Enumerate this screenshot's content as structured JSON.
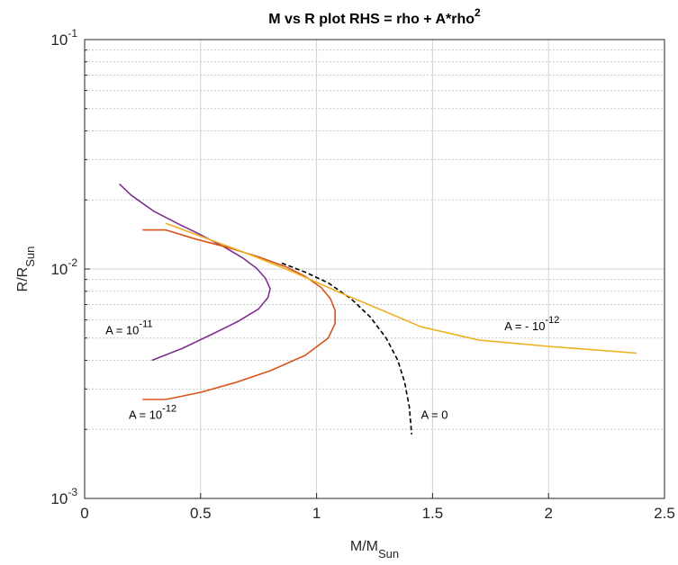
{
  "chart_data": {
    "type": "line",
    "title": "M vs R plot  RHS = rho + A*rho",
    "title_sup": "2",
    "xlabel": "M/M",
    "xlabel_sub": "Sun",
    "ylabel": "R/R",
    "ylabel_sub": "Sun",
    "xlim": [
      0,
      2.5
    ],
    "ylim": [
      0.001,
      0.1
    ],
    "yscale": "log",
    "grid": true,
    "x_ticks": [
      0,
      0.5,
      1,
      1.5,
      2,
      2.5
    ],
    "x_tick_labels": [
      "0",
      "0.5",
      "1",
      "1.5",
      "2",
      "2.5"
    ],
    "y_ticks": [
      {
        "value": 0.001,
        "base": "10",
        "exp": "-3"
      },
      {
        "value": 0.01,
        "base": "10",
        "exp": "-2"
      },
      {
        "value": 0.1,
        "base": "10",
        "exp": "-1"
      }
    ],
    "series": [
      {
        "color": "#7e2f8e",
        "dash": "solid",
        "x": [
          0.15,
          0.2,
          0.3,
          0.4,
          0.5,
          0.6,
          0.68,
          0.74,
          0.78,
          0.8,
          0.79,
          0.75,
          0.66,
          0.55,
          0.42,
          0.29
        ],
        "y": [
          0.0235,
          0.021,
          0.0178,
          0.0158,
          0.0141,
          0.0125,
          0.0112,
          0.0101,
          0.0091,
          0.0082,
          0.0075,
          0.0067,
          0.0059,
          0.0052,
          0.0045,
          0.004
        ]
      },
      {
        "color": "#d95319",
        "dash": "solid",
        "x": [
          0.25,
          0.35,
          0.48,
          0.62,
          0.75,
          0.87,
          0.95,
          1.02,
          1.06,
          1.08,
          1.08,
          1.05,
          0.95,
          0.8,
          0.65,
          0.5,
          0.35,
          0.25
        ],
        "y": [
          0.0148,
          0.0148,
          0.0135,
          0.0124,
          0.0113,
          0.0102,
          0.0093,
          0.0083,
          0.0074,
          0.0066,
          0.0058,
          0.005,
          0.0042,
          0.0036,
          0.0032,
          0.0029,
          0.0027,
          0.0027
        ]
      },
      {
        "color": "#000000",
        "dash": "dashed",
        "x": [
          0.85,
          0.95,
          1.05,
          1.15,
          1.23,
          1.3,
          1.35,
          1.38,
          1.4,
          1.41
        ],
        "y": [
          0.0106,
          0.0097,
          0.0087,
          0.0074,
          0.0062,
          0.005,
          0.004,
          0.0032,
          0.0025,
          0.0019
        ]
      },
      {
        "color": "#edb120",
        "dash": "solid",
        "x": [
          0.35,
          0.5,
          0.7,
          0.9,
          1.1,
          1.3,
          1.45,
          1.7,
          2.0,
          2.38
        ],
        "y": [
          0.0158,
          0.0139,
          0.0117,
          0.0097,
          0.0079,
          0.0065,
          0.0056,
          0.0049,
          0.0046,
          0.0043
        ]
      }
    ],
    "annotations": [
      {
        "text": "A  =  10",
        "sup": "-11",
        "x": 0.09,
        "y": 0.0052
      },
      {
        "text": "A  =  10",
        "sup": "-12",
        "x": 0.19,
        "y": 0.00222
      },
      {
        "text": "A  =  0",
        "sup": "",
        "x": 1.45,
        "y": 0.00222
      },
      {
        "text": "A  =  -  10",
        "sup": "-12",
        "x": 1.81,
        "y": 0.0054
      }
    ]
  }
}
